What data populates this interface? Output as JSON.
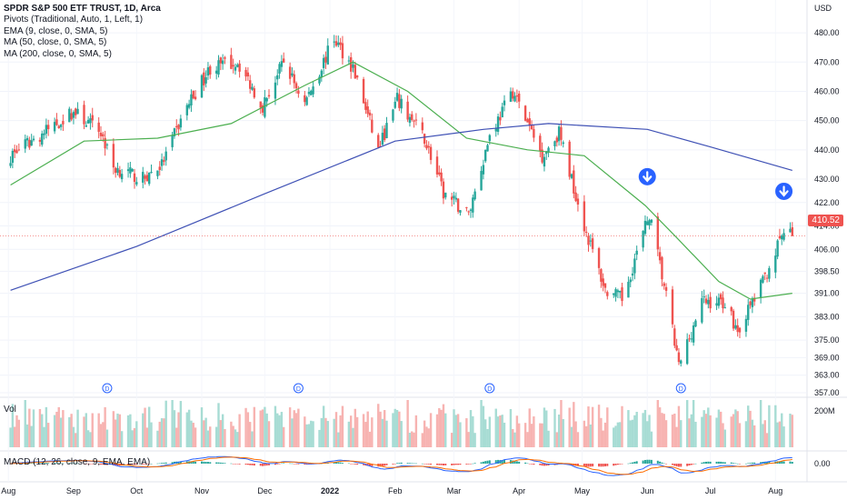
{
  "header": {
    "title": "SPDR S&P 500 ETF TRUST, 1D, Arca",
    "indicators": [
      "Pivots (Traditional, Auto, 1, Left, 1)",
      "EMA (9, close, 0, SMA, 5)",
      "MA (50, close, 0, SMA, 5)",
      "MA (200, close, 0, SMA, 5)"
    ]
  },
  "price_axis": {
    "currency": "USD",
    "ticks": [
      "480.00",
      "470.00",
      "460.00",
      "450.00",
      "440.00",
      "430.00",
      "422.00",
      "414.00",
      "406.00",
      "398.50",
      "391.00",
      "383.00",
      "375.00",
      "369.00",
      "363.00",
      "357.00"
    ],
    "last_price": "410.52"
  },
  "volume_pane": {
    "label": "Vol",
    "tick": "200M"
  },
  "macd_pane": {
    "label": "MACD (12, 26, close, 9, EMA, EMA)",
    "tick": "0.00"
  },
  "time_axis": [
    "Aug",
    "Sep",
    "Oct",
    "Nov",
    "Dec",
    "2022",
    "Feb",
    "Mar",
    "Apr",
    "May",
    "Jun",
    "Jul",
    "Aug"
  ],
  "dividend_marker": "D",
  "colors": {
    "up": "#26a69a",
    "down": "#ef5350",
    "ma50": "#4caf50",
    "ma200": "#3f51b5",
    "macd": "#2962ff",
    "signal": "#ff6d00",
    "marker": "#2962ff"
  },
  "chart_data": {
    "type": "candlestick",
    "ylim": [
      357,
      485
    ],
    "axis_labels": [
      "Aug",
      "Sep",
      "Oct",
      "Nov",
      "Dec",
      "2022",
      "Feb",
      "Mar",
      "Apr",
      "May",
      "Jun",
      "Jul",
      "Aug"
    ],
    "close_anchors": [
      {
        "date": "2021-08-02",
        "close": 438
      },
      {
        "date": "2021-08-16",
        "close": 445
      },
      {
        "date": "2021-09-01",
        "close": 453
      },
      {
        "date": "2021-09-14",
        "close": 446
      },
      {
        "date": "2021-09-20",
        "close": 434
      },
      {
        "date": "2021-10-04",
        "close": 430
      },
      {
        "date": "2021-10-13",
        "close": 435
      },
      {
        "date": "2021-10-25",
        "close": 455
      },
      {
        "date": "2021-11-05",
        "close": 468
      },
      {
        "date": "2021-11-18",
        "close": 470
      },
      {
        "date": "2021-11-30",
        "close": 455
      },
      {
        "date": "2021-12-10",
        "close": 470
      },
      {
        "date": "2021-12-20",
        "close": 456
      },
      {
        "date": "2022-01-03",
        "close": 478
      },
      {
        "date": "2022-01-12",
        "close": 468
      },
      {
        "date": "2022-01-24",
        "close": 440
      },
      {
        "date": "2022-02-02",
        "close": 457
      },
      {
        "date": "2022-02-15",
        "close": 444
      },
      {
        "date": "2022-02-24",
        "close": 425
      },
      {
        "date": "2022-03-08",
        "close": 418
      },
      {
        "date": "2022-03-18",
        "close": 445
      },
      {
        "date": "2022-03-29",
        "close": 460
      },
      {
        "date": "2022-04-12",
        "close": 438
      },
      {
        "date": "2022-04-20",
        "close": 446
      },
      {
        "date": "2022-05-02",
        "close": 414
      },
      {
        "date": "2022-05-12",
        "close": 392
      },
      {
        "date": "2022-05-20",
        "close": 389
      },
      {
        "date": "2022-06-02",
        "close": 418
      },
      {
        "date": "2022-06-10",
        "close": 390
      },
      {
        "date": "2022-06-16",
        "close": 366
      },
      {
        "date": "2022-06-27",
        "close": 388
      },
      {
        "date": "2022-07-08",
        "close": 388
      },
      {
        "date": "2022-07-14",
        "close": 378
      },
      {
        "date": "2022-07-26",
        "close": 395
      },
      {
        "date": "2022-08-05",
        "close": 412
      },
      {
        "date": "2022-08-09",
        "close": 410.52
      }
    ],
    "ma50_anchors": [
      {
        "date": "2021-08-02",
        "value": 428
      },
      {
        "date": "2021-09-06",
        "value": 443
      },
      {
        "date": "2021-10-11",
        "value": 444
      },
      {
        "date": "2021-11-15",
        "value": 449
      },
      {
        "date": "2021-12-20",
        "value": 462
      },
      {
        "date": "2022-01-12",
        "value": 470
      },
      {
        "date": "2022-02-07",
        "value": 460
      },
      {
        "date": "2022-03-07",
        "value": 444
      },
      {
        "date": "2022-04-05",
        "value": 440
      },
      {
        "date": "2022-05-02",
        "value": 438
      },
      {
        "date": "2022-05-31",
        "value": 421
      },
      {
        "date": "2022-06-15",
        "value": 410
      },
      {
        "date": "2022-07-05",
        "value": 395
      },
      {
        "date": "2022-07-20",
        "value": 389
      },
      {
        "date": "2022-08-09",
        "value": 391
      }
    ],
    "ma200_anchors": [
      {
        "date": "2021-08-02",
        "value": 392
      },
      {
        "date": "2021-10-01",
        "value": 407
      },
      {
        "date": "2021-12-01",
        "value": 425
      },
      {
        "date": "2022-02-01",
        "value": 443
      },
      {
        "date": "2022-03-15",
        "value": 447
      },
      {
        "date": "2022-04-15",
        "value": 449
      },
      {
        "date": "2022-06-01",
        "value": 447
      },
      {
        "date": "2022-07-01",
        "value": 441
      },
      {
        "date": "2022-08-09",
        "value": 433
      }
    ],
    "dividend_dates": [
      "2021-09-17",
      "2021-12-17",
      "2022-03-18",
      "2022-06-17"
    ],
    "arrow_markers": [
      {
        "date": "2022-06-01",
        "price": 424
      },
      {
        "date": "2022-08-05",
        "price": 419
      }
    ]
  }
}
